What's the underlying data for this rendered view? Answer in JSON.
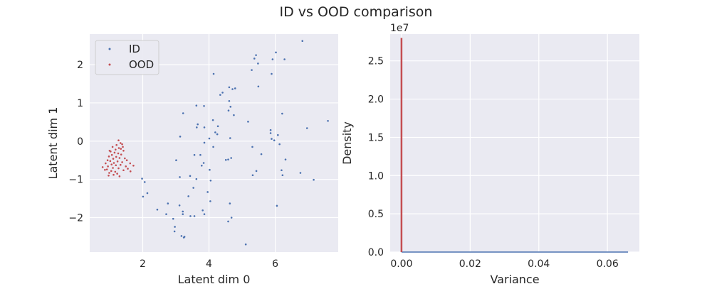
{
  "figure": {
    "title": "ID vs OOD comparison"
  },
  "colors": {
    "id": "#4c72b0",
    "ood": "#c44e52",
    "axes_bg": "#eaeaf2",
    "grid": "#ffffff"
  },
  "chart_data": [
    {
      "type": "scatter",
      "title": "",
      "xlabel": "Latent dim 0",
      "ylabel": "Latent dim 1",
      "xlim": [
        0.4,
        7.9
      ],
      "ylim": [
        -2.9,
        2.8
      ],
      "xticks": [
        2,
        4,
        6
      ],
      "yticks": [
        -2,
        -1,
        0,
        1,
        2
      ],
      "grid": true,
      "legend": {
        "placement": "top-left",
        "entries": [
          "ID",
          "OOD"
        ]
      },
      "series": [
        {
          "name": "ID",
          "color": "#4c72b0",
          "points": [
            [
              6.82,
              2.62
            ],
            [
              5.42,
              2.25
            ],
            [
              6.02,
              2.32
            ],
            [
              5.37,
              2.16
            ],
            [
              5.92,
              2.14
            ],
            [
              6.28,
              2.14
            ],
            [
              5.48,
              2.03
            ],
            [
              5.29,
              1.86
            ],
            [
              4.14,
              1.76
            ],
            [
              5.89,
              1.76
            ],
            [
              5.49,
              1.43
            ],
            [
              4.79,
              1.38
            ],
            [
              4.61,
              1.41
            ],
            [
              4.71,
              1.36
            ],
            [
              4.41,
              1.27
            ],
            [
              4.34,
              1.21
            ],
            [
              4.61,
              1.05
            ],
            [
              3.85,
              0.92
            ],
            [
              4.65,
              0.9
            ],
            [
              3.62,
              0.93
            ],
            [
              4.59,
              0.8
            ],
            [
              3.22,
              0.73
            ],
            [
              6.21,
              0.72
            ],
            [
              4.75,
              0.68
            ],
            [
              4.12,
              0.55
            ],
            [
              5.18,
              0.51
            ],
            [
              7.59,
              0.53
            ],
            [
              3.66,
              0.44
            ],
            [
              4.27,
              0.39
            ],
            [
              3.63,
              0.36
            ],
            [
              6.96,
              0.34
            ],
            [
              3.86,
              0.36
            ],
            [
              5.86,
              0.29
            ],
            [
              5.86,
              0.21
            ],
            [
              4.19,
              0.23
            ],
            [
              4.25,
              0.18
            ],
            [
              6.08,
              0.16
            ],
            [
              3.13,
              0.12
            ],
            [
              4.01,
              0.07
            ],
            [
              5.89,
              0.06
            ],
            [
              5.97,
              0.02
            ],
            [
              4.64,
              0.08
            ],
            [
              6.13,
              -0.08
            ],
            [
              3.86,
              -0.04
            ],
            [
              4.13,
              -0.15
            ],
            [
              5.31,
              -0.15
            ],
            [
              5.58,
              -0.34
            ],
            [
              3.56,
              -0.36
            ],
            [
              3.74,
              -0.36
            ],
            [
              4.58,
              -0.48
            ],
            [
              4.67,
              -0.44
            ],
            [
              4.51,
              -0.49
            ],
            [
              6.31,
              -0.48
            ],
            [
              3.01,
              -0.5
            ],
            [
              3.84,
              -0.57
            ],
            [
              3.78,
              -0.64
            ],
            [
              4.02,
              -0.75
            ],
            [
              5.43,
              -0.78
            ],
            [
              6.19,
              -0.76
            ],
            [
              6.76,
              -0.83
            ],
            [
              5.32,
              -0.89
            ],
            [
              6.22,
              -0.89
            ],
            [
              3.43,
              -0.91
            ],
            [
              3.12,
              -0.94
            ],
            [
              3.62,
              -0.99
            ],
            [
              1.98,
              -0.98
            ],
            [
              7.16,
              -1.01
            ],
            [
              4.05,
              -1.03
            ],
            [
              2.06,
              -1.07
            ],
            [
              3.53,
              -1.22
            ],
            [
              3.96,
              -1.33
            ],
            [
              2.14,
              -1.36
            ],
            [
              3.38,
              -1.44
            ],
            [
              2.01,
              -1.45
            ],
            [
              4.04,
              -1.57
            ],
            [
              2.76,
              -1.63
            ],
            [
              4.63,
              -1.63
            ],
            [
              3.11,
              -1.68
            ],
            [
              6.05,
              -1.69
            ],
            [
              2.44,
              -1.79
            ],
            [
              3.81,
              -1.81
            ],
            [
              3.21,
              -1.84
            ],
            [
              3.86,
              -1.91
            ],
            [
              3.21,
              -1.91
            ],
            [
              2.71,
              -1.91
            ],
            [
              3.44,
              -1.96
            ],
            [
              3.56,
              -1.96
            ],
            [
              4.68,
              -2.0
            ],
            [
              2.92,
              -2.03
            ],
            [
              4.58,
              -2.1
            ],
            [
              2.97,
              -2.24
            ],
            [
              2.96,
              -2.36
            ],
            [
              3.26,
              -2.5
            ],
            [
              3.17,
              -2.48
            ],
            [
              3.24,
              -2.52
            ],
            [
              5.11,
              -2.7
            ]
          ]
        },
        {
          "name": "OOD",
          "color": "#c44e52",
          "points": [
            [
              1.27,
              0.02
            ],
            [
              1.33,
              -0.05
            ],
            [
              1.21,
              -0.1
            ],
            [
              1.38,
              -0.08
            ],
            [
              1.09,
              -0.15
            ],
            [
              1.28,
              -0.18
            ],
            [
              1.18,
              -0.22
            ],
            [
              1.34,
              -0.2
            ],
            [
              1.42,
              -0.25
            ],
            [
              1.03,
              -0.27
            ],
            [
              1.15,
              -0.3
            ],
            [
              1.26,
              -0.32
            ],
            [
              1.07,
              -0.36
            ],
            [
              1.35,
              -0.35
            ],
            [
              0.98,
              -0.4
            ],
            [
              1.2,
              -0.41
            ],
            [
              1.3,
              -0.44
            ],
            [
              1.11,
              -0.46
            ],
            [
              1.46,
              -0.45
            ],
            [
              0.94,
              -0.5
            ],
            [
              1.02,
              -0.52
            ],
            [
              1.24,
              -0.53
            ],
            [
              1.38,
              -0.55
            ],
            [
              1.13,
              -0.57
            ],
            [
              0.88,
              -0.58
            ],
            [
              1.62,
              -0.58
            ],
            [
              1.06,
              -0.61
            ],
            [
              1.19,
              -0.63
            ],
            [
              1.33,
              -0.62
            ],
            [
              0.95,
              -0.66
            ],
            [
              1.49,
              -0.66
            ],
            [
              1.72,
              -0.64
            ],
            [
              0.79,
              -0.68
            ],
            [
              1.1,
              -0.7
            ],
            [
              1.27,
              -0.71
            ],
            [
              1.55,
              -0.72
            ],
            [
              0.92,
              -0.74
            ],
            [
              1.42,
              -0.76
            ],
            [
              1.05,
              -0.78
            ],
            [
              1.17,
              -0.8
            ],
            [
              1.63,
              -0.79
            ],
            [
              0.99,
              -0.83
            ],
            [
              1.23,
              -0.85
            ],
            [
              1.12,
              -0.88
            ],
            [
              0.97,
              -0.9
            ],
            [
              1.3,
              -0.92
            ],
            [
              0.86,
              -0.75
            ],
            [
              1.52,
              -0.5
            ],
            [
              1.0,
              -0.25
            ],
            [
              1.4,
              -0.15
            ]
          ]
        }
      ]
    },
    {
      "type": "line",
      "title": "",
      "xlabel": "Variance",
      "ylabel": "Density",
      "xlim": [
        -0.0033,
        0.0693
      ],
      "ylim": [
        0,
        28.5
      ],
      "y_multiplier_label": "1e7",
      "xticks": [
        0.0,
        0.02,
        0.04,
        0.06
      ],
      "xtick_labels": [
        "0.00",
        "0.02",
        "0.04",
        "0.06"
      ],
      "yticks": [
        0,
        5,
        10,
        15,
        20,
        25
      ],
      "ytick_labels": [
        "0.0",
        "0.5",
        "1.0",
        "1.5",
        "2.0",
        "2.5"
      ],
      "grid": true,
      "series": [
        {
          "name": "ID",
          "color": "#4c72b0",
          "x": [
            0.0,
            0.066
          ],
          "y": [
            0.0,
            0.0
          ]
        },
        {
          "name": "OOD",
          "color": "#c44e52",
          "x": [
            0.0,
            0.0
          ],
          "y": [
            0.0,
            28.0
          ]
        }
      ]
    }
  ]
}
